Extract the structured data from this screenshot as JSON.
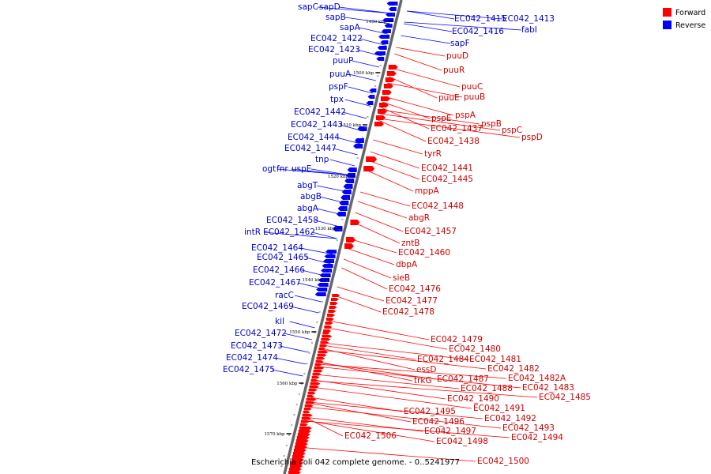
{
  "caption": "Escherichia coli 042 complete genome. - 0..5241977",
  "legend": {
    "forward_label": "Forward",
    "reverse_label": "Reverse",
    "forward_color": "#ff0000",
    "reverse_color": "#0000ff"
  },
  "ticks": [
    "1490 kbp",
    "1500 kbp",
    "1510 kbp",
    "1520 kbp",
    "1530 kbp",
    "1540 kbp",
    "1550 kbp",
    "1560 kbp",
    "1570 kbp"
  ],
  "reverse_genes": [
    "sapC",
    "sapD",
    "sapB",
    "sapA",
    "EC042_1422",
    "EC042_1423",
    "puuP",
    "puuA",
    "pspF",
    "tpx",
    "EC042_1442",
    "EC042_1443",
    "EC042_1444",
    "EC042_1447",
    "tnp",
    "ogt",
    "fnr",
    "uspE",
    "abgT",
    "abgB",
    "abgA",
    "EC042_1458",
    "intR",
    "EC042_1462",
    "EC042_1464",
    "EC042_1465",
    "EC042_1466",
    "EC042_1467",
    "racC",
    "EC042_1469",
    "kil",
    "EC042_1472",
    "EC042_1473",
    "EC042_1474",
    "EC042_1475",
    "EC042_1415",
    "EC042_1413",
    "EC042_1416",
    "fabI",
    "sapF"
  ],
  "forward_genes": [
    "puuD",
    "puuR",
    "puuC",
    "puuE",
    "puuB",
    "pspE",
    "pspA",
    "EC042_1437",
    "pspB",
    "pspC",
    "pspD",
    "EC042_1438",
    "tyrR",
    "EC042_1441",
    "EC042_1445",
    "mppA",
    "EC042_1448",
    "abgR",
    "EC042_1457",
    "zntB",
    "EC042_1460",
    "dbpA",
    "sieB",
    "EC042_1476",
    "EC042_1477",
    "EC042_1478",
    "EC042_1479",
    "EC042_1480",
    "EC042_1484",
    "EC042_1481",
    "EC042_1482",
    "essD",
    "EC042_1482A",
    "EC042_1487",
    "trkG",
    "EC042_1483",
    "EC042_1488",
    "EC042_1485",
    "EC042_1490",
    "EC042_1491",
    "EC042_1495",
    "EC042_1492",
    "EC042_1496",
    "EC042_1493",
    "EC042_1497",
    "EC042_1494",
    "EC042_1506",
    "EC042_1498",
    "EC042_1500"
  ]
}
